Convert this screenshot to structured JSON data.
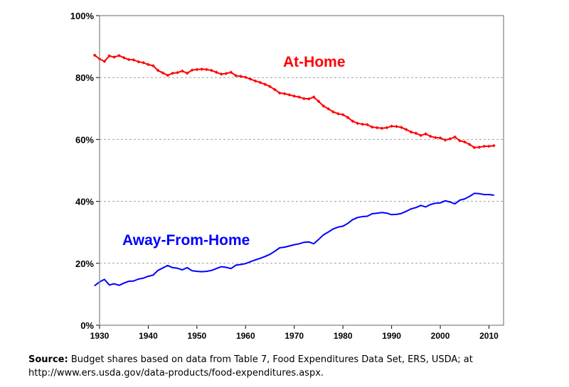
{
  "chart_data": {
    "type": "line",
    "xlim": [
      1930,
      2013
    ],
    "ylim": [
      0,
      100
    ],
    "x_ticks": [
      "1930",
      "1940",
      "1950",
      "1960",
      "1970",
      "1980",
      "1990",
      "2000",
      "2010"
    ],
    "y_ticks": [
      "0%",
      "20%",
      "40%",
      "60%",
      "80%",
      "100%"
    ],
    "grid": "horizontal-dashed",
    "series": [
      {
        "name": "At-Home",
        "color": "#ff0000",
        "marker": "small-diamond",
        "x": [
          1929,
          1930,
          1931,
          1932,
          1933,
          1934,
          1935,
          1936,
          1937,
          1938,
          1939,
          1940,
          1941,
          1942,
          1943,
          1944,
          1945,
          1946,
          1947,
          1948,
          1949,
          1950,
          1951,
          1952,
          1953,
          1954,
          1955,
          1956,
          1957,
          1958,
          1959,
          1960,
          1961,
          1962,
          1963,
          1964,
          1965,
          1966,
          1967,
          1968,
          1969,
          1970,
          1971,
          1972,
          1973,
          1974,
          1975,
          1976,
          1977,
          1978,
          1979,
          1980,
          1981,
          1982,
          1983,
          1984,
          1985,
          1986,
          1987,
          1988,
          1989,
          1990,
          1991,
          1992,
          1993,
          1994,
          1995,
          1996,
          1997,
          1998,
          1999,
          2000,
          2001,
          2002,
          2003,
          2004,
          2005,
          2006,
          2007,
          2008,
          2009,
          2010,
          2011
        ],
        "values": [
          87.2,
          86.0,
          85.2,
          87.0,
          86.6,
          87.1,
          86.4,
          85.8,
          85.7,
          85.1,
          84.8,
          84.2,
          83.8,
          82.3,
          81.5,
          80.7,
          81.4,
          81.6,
          82.1,
          81.4,
          82.4,
          82.6,
          82.7,
          82.6,
          82.3,
          81.7,
          81.1,
          81.3,
          81.7,
          80.6,
          80.4,
          80.1,
          79.5,
          78.9,
          78.4,
          77.8,
          77.1,
          76.1,
          75.0,
          74.8,
          74.4,
          74.0,
          73.7,
          73.2,
          73.1,
          73.7,
          72.3,
          70.8,
          69.9,
          68.9,
          68.3,
          68.0,
          67.1,
          65.9,
          65.2,
          64.9,
          64.8,
          64.0,
          63.8,
          63.6,
          63.8,
          64.3,
          64.2,
          63.9,
          63.2,
          62.4,
          62.0,
          61.3,
          61.8,
          61.0,
          60.6,
          60.5,
          59.8,
          60.2,
          60.8,
          59.6,
          59.2,
          58.4,
          57.4,
          57.5,
          57.8,
          57.8,
          58.0
        ]
      },
      {
        "name": "Away-From-Home",
        "color": "#0000ff",
        "marker": "none",
        "x": [
          1929,
          1930,
          1931,
          1932,
          1933,
          1934,
          1935,
          1936,
          1937,
          1938,
          1939,
          1940,
          1941,
          1942,
          1943,
          1944,
          1945,
          1946,
          1947,
          1948,
          1949,
          1950,
          1951,
          1952,
          1953,
          1954,
          1955,
          1956,
          1957,
          1958,
          1959,
          1960,
          1961,
          1962,
          1963,
          1964,
          1965,
          1966,
          1967,
          1968,
          1969,
          1970,
          1971,
          1972,
          1973,
          1974,
          1975,
          1976,
          1977,
          1978,
          1979,
          1980,
          1981,
          1982,
          1983,
          1984,
          1985,
          1986,
          1987,
          1988,
          1989,
          1990,
          1991,
          1992,
          1993,
          1994,
          1995,
          1996,
          1997,
          1998,
          1999,
          2000,
          2001,
          2002,
          2003,
          2004,
          2005,
          2006,
          2007,
          2008,
          2009,
          2010,
          2011
        ],
        "values": [
          12.8,
          14.0,
          14.8,
          13.0,
          13.4,
          12.9,
          13.6,
          14.2,
          14.3,
          14.9,
          15.2,
          15.8,
          16.2,
          17.7,
          18.5,
          19.3,
          18.6,
          18.4,
          17.9,
          18.6,
          17.6,
          17.4,
          17.3,
          17.4,
          17.7,
          18.3,
          18.9,
          18.7,
          18.3,
          19.4,
          19.6,
          19.9,
          20.5,
          21.1,
          21.6,
          22.2,
          22.9,
          23.9,
          25.0,
          25.2,
          25.6,
          26.0,
          26.3,
          26.8,
          26.9,
          26.3,
          27.7,
          29.2,
          30.1,
          31.1,
          31.7,
          32.0,
          32.9,
          34.1,
          34.8,
          35.1,
          35.2,
          36.0,
          36.2,
          36.4,
          36.2,
          35.7,
          35.8,
          36.1,
          36.8,
          37.6,
          38.0,
          38.7,
          38.2,
          39.0,
          39.4,
          39.5,
          40.2,
          39.8,
          39.2,
          40.4,
          40.8,
          41.6,
          42.6,
          42.5,
          42.2,
          42.2,
          42.0
        ]
      }
    ],
    "annotations": [
      {
        "text": "At-Home",
        "color": "#ff0000"
      },
      {
        "text": "Away-From-Home",
        "color": "#0000ff"
      }
    ]
  },
  "source": {
    "label": "Source:",
    "text": " Budget shares based on data from Table 7, Food Expenditures Data Set, ERS, USDA; at http://www.ers.usda.gov/data-products/food-expenditures.aspx."
  }
}
